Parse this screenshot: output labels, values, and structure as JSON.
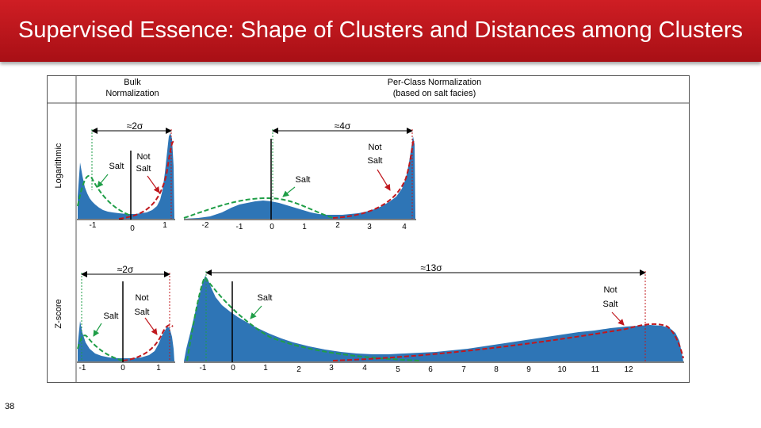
{
  "slide": {
    "title": "Supervised Essence: Shape of Clusters and Distances among Clusters",
    "page_number": "38"
  },
  "headers": {
    "bulk": "Bulk\nNormalization",
    "per_class": "Per-Class Normalization\n(based on salt facies)"
  },
  "rows": {
    "logarithmic": "Logarithmic",
    "zscore": "Z-score"
  },
  "panels": {
    "log_bulk": {
      "distance": "≈2σ",
      "salt_label": "Salt",
      "not_salt_label": "Not\nSalt",
      "ticks": [
        "-1",
        "0",
        "1"
      ]
    },
    "log_class": {
      "distance": "≈4σ",
      "salt_label": "Salt",
      "not_salt_label": "Not\nSalt",
      "ticks": [
        "-2",
        "-1",
        "0",
        "1",
        "2",
        "3",
        "4"
      ]
    },
    "z_bulk": {
      "distance": "≈2σ",
      "salt_label": "Salt",
      "not_salt_label": "Not\nSalt",
      "ticks": [
        "-1",
        "0",
        "1"
      ]
    },
    "z_class": {
      "distance": "≈13σ",
      "salt_label": "Salt",
      "not_salt_label": "Not\nSalt",
      "ticks": [
        "-1",
        "0",
        "1",
        "2",
        "3",
        "4",
        "5",
        "6",
        "7",
        "8",
        "9",
        "10",
        "11",
        "12"
      ]
    }
  },
  "colors": {
    "banner": "#c0181e",
    "histogram": "#2e75b6",
    "salt_curve": "#1f9e47",
    "not_salt_curve": "#c0181e",
    "arrow": "#000000"
  }
}
